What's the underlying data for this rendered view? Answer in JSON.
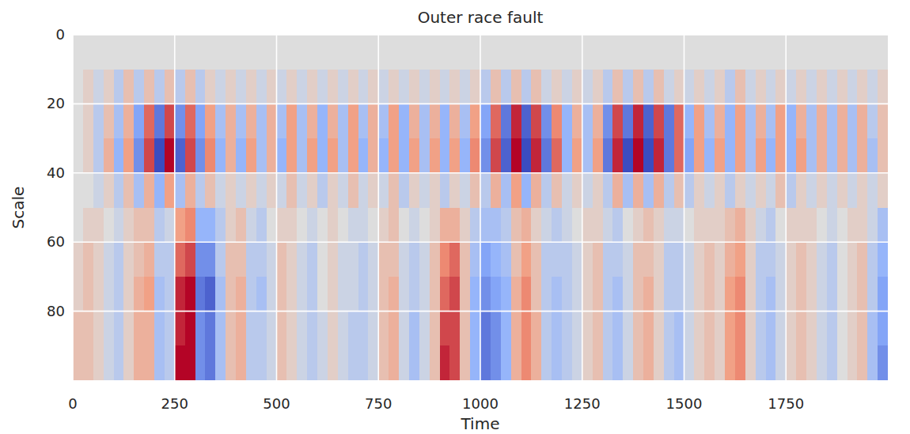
{
  "chart_data": {
    "type": "heatmap",
    "title": "Outer race fault",
    "x_label": "Time",
    "y_label": "Scale",
    "xlim": [
      0,
      2000
    ],
    "ylim": [
      100,
      0
    ],
    "xticks": [
      0,
      250,
      500,
      750,
      1000,
      1250,
      1500,
      1750
    ],
    "yticks": [
      0,
      20,
      40,
      60,
      80
    ],
    "grid": true,
    "x": [
      0,
      25,
      50,
      75,
      100,
      125,
      150,
      175,
      200,
      225,
      250,
      275,
      300,
      325,
      350,
      375,
      400,
      425,
      450,
      475,
      500,
      525,
      550,
      575,
      600,
      625,
      650,
      675,
      700,
      725,
      750,
      775,
      800,
      825,
      850,
      875,
      900,
      925,
      950,
      975,
      1000,
      1025,
      1050,
      1075,
      1100,
      1125,
      1150,
      1175,
      1200,
      1225,
      1250,
      1275,
      1300,
      1325,
      1350,
      1375,
      1400,
      1425,
      1450,
      1475,
      1500,
      1525,
      1550,
      1575,
      1600,
      1625,
      1650,
      1675,
      1700,
      1725,
      1750,
      1775,
      1800,
      1825,
      1850,
      1875,
      1900,
      1925,
      1950,
      1975
    ],
    "y": [
      0,
      10,
      20,
      30,
      40,
      50,
      60,
      70,
      80,
      90
    ],
    "cells": [
      [
        0,
        0,
        0,
        0,
        0,
        0,
        0,
        0,
        0,
        0,
        0,
        0,
        0,
        0,
        0,
        0,
        0,
        0,
        0,
        0,
        0,
        0,
        0,
        0,
        0,
        0,
        0,
        0,
        0,
        0,
        0,
        0,
        0,
        0,
        0,
        0,
        0,
        0,
        0,
        0,
        0,
        0,
        0,
        0,
        0,
        0,
        0,
        0,
        0,
        0,
        0,
        0,
        0,
        0,
        0,
        0,
        0,
        0,
        0,
        0,
        0,
        0,
        0,
        0,
        0,
        0,
        0,
        0,
        0,
        0,
        0,
        0,
        0,
        0,
        0,
        0,
        0,
        0,
        0,
        0
      ],
      [
        0,
        1,
        -1,
        1,
        -2,
        2,
        -2,
        2,
        -2,
        2,
        -2,
        2,
        -2,
        1,
        -1,
        1,
        -1,
        1,
        -1,
        1,
        -1,
        1,
        -1,
        1,
        -1,
        1,
        -1,
        1,
        -1,
        1,
        -1,
        1,
        -1,
        1,
        -1,
        1,
        -1,
        1,
        -1,
        1,
        -2,
        2,
        -2,
        2,
        -2,
        2,
        -1,
        1,
        -1,
        1,
        -1,
        1,
        -2,
        2,
        -2,
        2,
        -2,
        2,
        -1,
        1,
        -1,
        1,
        -1,
        1,
        -2,
        2,
        -1,
        1,
        -1,
        1,
        -1,
        1,
        -1,
        1,
        -1,
        1,
        -1,
        1,
        -1,
        1
      ],
      [
        0,
        1,
        -2,
        2,
        -3,
        3,
        -5,
        6,
        -7,
        7,
        -6,
        6,
        -5,
        4,
        -3,
        3,
        -3,
        3,
        -3,
        3,
        -3,
        4,
        -3,
        3,
        -4,
        3,
        -3,
        4,
        -3,
        3,
        -3,
        4,
        -4,
        3,
        -3,
        3,
        -4,
        3,
        -3,
        4,
        -5,
        6,
        -7,
        8,
        -8,
        7,
        -6,
        5,
        -4,
        3,
        -3,
        3,
        -6,
        7,
        -7,
        8,
        -8,
        7,
        -7,
        6,
        -4,
        4,
        -3,
        3,
        -4,
        4,
        -3,
        3,
        -3,
        4,
        -4,
        3,
        -3,
        3,
        -3,
        3,
        -3,
        3,
        -2,
        2
      ],
      [
        0,
        1,
        -2,
        3,
        -4,
        4,
        -6,
        7,
        -9,
        9,
        -8,
        7,
        -6,
        5,
        -4,
        3,
        -4,
        4,
        -3,
        3,
        -4,
        4,
        -3,
        4,
        -4,
        4,
        -3,
        4,
        -4,
        3,
        -4,
        4,
        -4,
        4,
        -3,
        4,
        -4,
        4,
        -4,
        5,
        -6,
        7,
        -8,
        9,
        -9,
        8,
        -7,
        6,
        -4,
        4,
        -3,
        4,
        -7,
        8,
        -9,
        9,
        -9,
        8,
        -7,
        6,
        -5,
        4,
        -4,
        4,
        -4,
        4,
        -3,
        4,
        -4,
        4,
        -4,
        4,
        -3,
        3,
        -3,
        3,
        -3,
        3,
        -3,
        2
      ],
      [
        0,
        0,
        -1,
        1,
        -2,
        2,
        -3,
        3,
        -4,
        4,
        -3,
        3,
        -2,
        2,
        -1,
        1,
        -1,
        1,
        -1,
        1,
        -1,
        2,
        -1,
        1,
        -2,
        1,
        -1,
        2,
        -1,
        1,
        -1,
        2,
        -2,
        1,
        -1,
        1,
        -2,
        1,
        -1,
        2,
        -2,
        3,
        -3,
        4,
        -4,
        3,
        -2,
        2,
        -1,
        1,
        -1,
        1,
        -2,
        3,
        -3,
        3,
        -3,
        3,
        -2,
        2,
        -2,
        1,
        -1,
        1,
        -2,
        1,
        -1,
        1,
        -1,
        2,
        -2,
        1,
        -1,
        1,
        -1,
        1,
        -1,
        1,
        -1,
        1
      ],
      [
        0,
        1,
        1,
        0,
        -1,
        1,
        2,
        2,
        -2,
        -1,
        4,
        5,
        -4,
        -4,
        -2,
        1,
        2,
        -1,
        -2,
        0,
        1,
        1,
        0,
        -1,
        0,
        1,
        0,
        -1,
        -1,
        0,
        1,
        2,
        0,
        -1,
        0,
        1,
        3,
        3,
        1,
        -2,
        -3,
        -3,
        -2,
        2,
        3,
        1,
        -1,
        -2,
        -1,
        0,
        1,
        1,
        -1,
        -2,
        0,
        1,
        2,
        1,
        -1,
        -1,
        0,
        1,
        1,
        1,
        2,
        3,
        1,
        -1,
        -2,
        0,
        1,
        1,
        1,
        0,
        -1,
        0,
        1,
        1,
        -1,
        -3
      ],
      [
        1,
        2,
        1,
        -1,
        -2,
        1,
        2,
        3,
        -2,
        -2,
        6,
        7,
        -6,
        -6,
        -2,
        2,
        2,
        -2,
        -2,
        -1,
        2,
        1,
        -1,
        -2,
        0,
        1,
        -1,
        -1,
        -2,
        -1,
        2,
        2,
        -1,
        -2,
        -1,
        2,
        5,
        6,
        2,
        -3,
        -5,
        -4,
        -3,
        2,
        4,
        2,
        -2,
        -2,
        -2,
        -1,
        1,
        2,
        -2,
        -2,
        -1,
        2,
        2,
        1,
        -2,
        -2,
        -1,
        1,
        2,
        1,
        3,
        4,
        1,
        -2,
        -2,
        -1,
        1,
        2,
        1,
        -1,
        -2,
        0,
        1,
        2,
        -2,
        -4
      ],
      [
        1,
        2,
        1,
        -1,
        -2,
        1,
        3,
        4,
        -3,
        -2,
        8,
        9,
        -7,
        -8,
        -3,
        2,
        3,
        -2,
        -3,
        -1,
        2,
        1,
        -1,
        -2,
        0,
        1,
        -1,
        -1,
        -2,
        -1,
        2,
        3,
        -1,
        -2,
        -1,
        2,
        6,
        7,
        2,
        -4,
        -6,
        -5,
        -4,
        3,
        5,
        2,
        -2,
        -3,
        -2,
        -1,
        1,
        2,
        -2,
        -3,
        -1,
        2,
        3,
        1,
        -2,
        -2,
        -1,
        1,
        2,
        1,
        4,
        5,
        1,
        -2,
        -3,
        -1,
        1,
        2,
        1,
        -1,
        -2,
        0,
        1,
        2,
        -2,
        -5
      ],
      [
        2,
        2,
        1,
        -1,
        -2,
        1,
        3,
        3,
        -3,
        -2,
        8,
        9,
        -6,
        -7,
        -3,
        2,
        3,
        -2,
        -2,
        -1,
        2,
        1,
        -1,
        -2,
        -1,
        1,
        -1,
        -2,
        -2,
        -1,
        2,
        3,
        -1,
        -3,
        -1,
        2,
        7,
        7,
        2,
        -4,
        -7,
        -6,
        -4,
        3,
        5,
        3,
        -2,
        -3,
        -2,
        -1,
        1,
        2,
        -2,
        -3,
        -1,
        2,
        3,
        1,
        -2,
        -3,
        -1,
        1,
        2,
        1,
        4,
        5,
        1,
        -2,
        -3,
        -1,
        1,
        2,
        1,
        -1,
        -2,
        0,
        1,
        2,
        -3,
        -5
      ],
      [
        2,
        2,
        1,
        -1,
        -2,
        1,
        3,
        3,
        -3,
        -2,
        9,
        9,
        -6,
        -7,
        -3,
        2,
        3,
        -2,
        -2,
        -1,
        2,
        1,
        -1,
        -2,
        -1,
        1,
        -1,
        -2,
        -2,
        -1,
        2,
        3,
        -1,
        -3,
        -1,
        2,
        8,
        7,
        2,
        -4,
        -7,
        -6,
        -4,
        3,
        5,
        3,
        -2,
        -3,
        -2,
        -1,
        1,
        2,
        -2,
        -3,
        -1,
        2,
        3,
        1,
        -2,
        -3,
        -1,
        1,
        2,
        1,
        4,
        5,
        1,
        -2,
        -3,
        -1,
        1,
        2,
        1,
        -1,
        -2,
        0,
        1,
        2,
        -3,
        -6
      ]
    ]
  }
}
